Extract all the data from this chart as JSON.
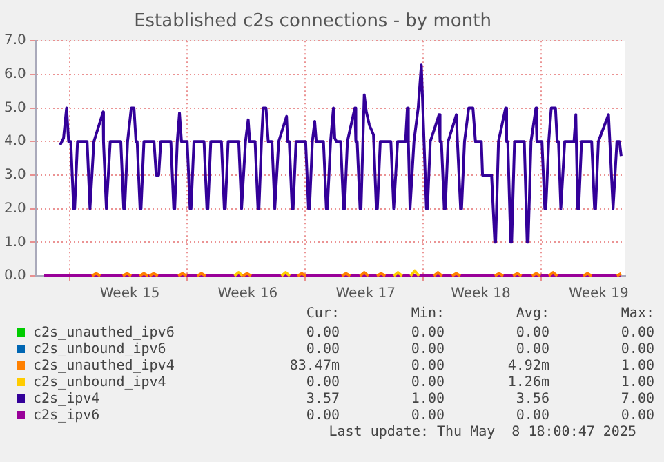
{
  "chart_data": {
    "type": "line",
    "title": "Established c2s connections - by month",
    "legend": "bottom",
    "marker": "none",
    "grid": true,
    "xlim": [
      "2025-04-04",
      "2025-05-09"
    ],
    "xticks": [
      {
        "value": "2025-04-06",
        "label": null
      },
      {
        "value": "2025-04-09T14:00",
        "label": "Week 15"
      },
      {
        "value": "2025-04-13",
        "label": null
      },
      {
        "value": "2025-04-16T14:00",
        "label": "Week 16"
      },
      {
        "value": "2025-04-20",
        "label": null
      },
      {
        "value": "2025-04-23T14:00",
        "label": "Week 17"
      },
      {
        "value": "2025-04-27",
        "label": null
      },
      {
        "value": "2025-04-30T10:00",
        "label": "Week 18"
      },
      {
        "value": "2025-05-04",
        "label": null
      },
      {
        "value": "2025-05-07T10:00",
        "label": "Week 19"
      }
    ],
    "ylim": [
      0,
      7
    ],
    "yticks": [
      {
        "value": 0,
        "label": "0.0"
      },
      {
        "value": 1,
        "label": "1.0"
      },
      {
        "value": 2,
        "label": "2.0"
      },
      {
        "value": 3,
        "label": "3.0"
      },
      {
        "value": 4,
        "label": "4.0"
      },
      {
        "value": 5,
        "label": "5.0"
      },
      {
        "value": 6,
        "label": "6.0"
      },
      {
        "value": 7,
        "label": "7.0"
      }
    ],
    "series": [
      {
        "name": "c2s_unauthed_ipv6",
        "color": "#00cc00"
      },
      {
        "name": "c2s_unbound_ipv6",
        "color": "#0066b3"
      },
      {
        "name": "c2s_unauthed_ipv4",
        "color": "#ff8000",
        "x": [
          "2025-04-07T08:00",
          "2025-04-07T14:00",
          "2025-04-07T20:00",
          "2025-04-07T21:00",
          "2025-04-09T04:00",
          "2025-04-09T10:00",
          "2025-04-09T16:00",
          "2025-04-09T17:00",
          "2025-04-10T04:00",
          "2025-04-10T10:00",
          "2025-04-10T16:00",
          "2025-04-10T17:00",
          "2025-04-10T18:00",
          "2025-04-11T00:00",
          "2025-04-11T06:00",
          "2025-04-11T07:00",
          "2025-04-12T11:00",
          "2025-04-12T17:00",
          "2025-04-12T23:00",
          "2025-04-13T00:00",
          "2025-04-13T14:00",
          "2025-04-13T20:00",
          "2025-04-14T02:00",
          "2025-04-14T03:00",
          "2025-04-16T07:00",
          "2025-04-16T13:00",
          "2025-04-16T19:00",
          "2025-04-16T20:00",
          "2025-04-19T13:00",
          "2025-04-19T19:00",
          "2025-04-20T01:00",
          "2025-04-20T02:00",
          "2025-04-22T04:00",
          "2025-04-22T10:00",
          "2025-04-22T16:00",
          "2025-04-22T17:00",
          "2025-04-23T06:00",
          "2025-04-23T12:00",
          "2025-04-23T18:00",
          "2025-04-23T19:00",
          "2025-04-24T06:00",
          "2025-04-24T12:00",
          "2025-04-24T18:00",
          "2025-04-24T19:00",
          "2025-04-27T15:00",
          "2025-04-27T21:00",
          "2025-04-28T03:00",
          "2025-04-28T04:00",
          "2025-04-28T17:00",
          "2025-04-28T23:00",
          "2025-04-29T05:00",
          "2025-04-29T06:00",
          "2025-05-01T06:00",
          "2025-05-01T12:00",
          "2025-05-01T18:00",
          "2025-05-01T19:00",
          "2025-05-02T08:00",
          "2025-05-02T14:00",
          "2025-05-02T20:00",
          "2025-05-02T21:00",
          "2025-05-03T11:00",
          "2025-05-03T17:00",
          "2025-05-03T23:00",
          "2025-05-04T00:00",
          "2025-05-04T11:00",
          "2025-05-04T17:00",
          "2025-05-04T23:00",
          "2025-05-05T00:00",
          "2025-05-06T12:00",
          "2025-05-06T18:00",
          "2025-05-07T00:00",
          "2025-05-07T01:00",
          "2025-05-08T12:00",
          "2025-05-08T18:00"
        ],
        "values": [
          0,
          0.07,
          0,
          null,
          0,
          0.07,
          0,
          null,
          0,
          0.07,
          0,
          null,
          0,
          0.07,
          0,
          null,
          0,
          0.07,
          0,
          null,
          0,
          0.07,
          0,
          null,
          0,
          0.07,
          0,
          null,
          0,
          0.07,
          0,
          null,
          0,
          0.07,
          0,
          null,
          0,
          0.1,
          0,
          null,
          0,
          0.07,
          0,
          null,
          0,
          0.1,
          0,
          null,
          0,
          0.07,
          0,
          null,
          0,
          0.07,
          0,
          null,
          0,
          0.07,
          0,
          null,
          0,
          0.07,
          0,
          null,
          0,
          0.1,
          0,
          null,
          0,
          0.07,
          0,
          null,
          0,
          0.07
        ]
      },
      {
        "name": "c2s_unbound_ipv4",
        "color": "#ffcc00",
        "x": [
          "2025-04-15T19:00",
          "2025-04-16T01:00",
          "2025-04-16T07:00",
          "2025-04-16T08:00",
          "2025-04-18T14:00",
          "2025-04-18T20:00",
          "2025-04-19T02:00",
          "2025-04-19T03:00",
          "2025-04-25T06:00",
          "2025-04-25T12:00",
          "2025-04-25T18:00",
          "2025-04-25T19:00",
          "2025-04-26T06:00",
          "2025-04-26T12:00",
          "2025-04-26T18:00"
        ],
        "values": [
          0,
          0.1,
          0,
          null,
          0,
          0.1,
          0,
          null,
          0,
          0.1,
          0,
          null,
          0,
          0.15,
          0
        ]
      },
      {
        "name": "c2s_ipv4",
        "color": "#330099",
        "x": [
          "2025-04-05T10:50",
          "2025-04-05T15:35",
          "2025-04-05T19:55",
          "2025-04-05T22:50",
          "2025-04-06T01:55",
          "2025-04-06T06:00",
          "2025-04-06T07:25",
          "2025-04-06T11:30",
          "2025-04-06T19:10",
          "2025-04-07T01:10",
          "2025-04-07T05:15",
          "2025-04-07T06:40",
          "2025-04-07T10:50",
          "2025-04-08T00:00",
          "2025-04-08T00:30",
          "2025-04-08T04:35",
          "2025-04-08T06:00",
          "2025-04-08T10:05",
          "2025-04-09T01:10",
          "2025-04-09T05:15",
          "2025-04-09T06:40",
          "2025-04-09T10:50",
          "2025-04-09T16:05",
          "2025-04-09T19:55",
          "2025-04-09T22:50",
          "2025-04-10T00:30",
          "2025-04-10T04:35",
          "2025-04-10T06:00",
          "2025-04-10T10:05",
          "2025-04-11T00:30",
          "2025-04-11T03:35",
          "2025-04-11T07:10",
          "2025-04-11T10:05",
          "2025-04-12T00:30",
          "2025-04-12T04:35",
          "2025-04-12T06:00",
          "2025-04-12T09:35",
          "2025-04-12T12:45",
          "2025-04-12T15:35",
          "2025-04-12T23:45",
          "2025-04-13T03:50",
          "2025-04-13T05:15",
          "2025-04-13T09:20",
          "2025-04-13T23:45",
          "2025-04-14T03:50",
          "2025-04-14T05:15",
          "2025-04-14T09:20",
          "2025-04-15T00:30",
          "2025-04-15T04:35",
          "2025-04-15T06:00",
          "2025-04-15T10:05",
          "2025-04-16T01:10",
          "2025-04-16T05:15",
          "2025-04-16T06:40",
          "2025-04-16T10:50",
          "2025-04-16T14:40",
          "2025-04-16T16:50",
          "2025-04-17T00:30",
          "2025-04-17T04:35",
          "2025-04-17T06:00",
          "2025-04-17T09:35",
          "2025-04-17T12:00",
          "2025-04-17T16:05",
          "2025-04-17T19:10",
          "2025-04-18T00:30",
          "2025-04-18T04:35",
          "2025-04-18T06:00",
          "2025-04-18T10:05",
          "2025-04-18T21:20",
          "2025-04-18T22:50",
          "2025-04-19T01:10",
          "2025-04-19T05:15",
          "2025-04-19T06:40",
          "2025-04-19T10:50",
          "2025-04-20T00:30",
          "2025-04-20T04:35",
          "2025-04-20T06:00",
          "2025-04-20T10:05",
          "2025-04-20T13:25",
          "2025-04-20T15:35",
          "2025-04-21T01:55",
          "2025-04-21T06:00",
          "2025-04-21T07:25",
          "2025-04-21T12:00",
          "2025-04-21T16:05",
          "2025-04-21T18:00",
          "2025-04-21T20:25",
          "2025-04-22T02:25",
          "2025-04-22T06:30",
          "2025-04-22T07:55",
          "2025-04-22T12:00",
          "2025-04-22T22:35",
          "2025-04-23T00:00",
          "2025-04-23T01:55",
          "2025-04-23T06:00",
          "2025-04-23T07:25",
          "2025-04-23T10:05",
          "2025-04-23T12:00",
          "2025-04-23T14:50",
          "2025-04-23T19:10",
          "2025-04-24T01:10",
          "2025-04-24T05:15",
          "2025-04-24T06:40",
          "2025-04-24T10:50",
          "2025-04-25T01:55",
          "2025-04-25T06:00",
          "2025-04-25T07:25",
          "2025-04-25T11:30",
          "2025-04-25T22:50",
          "2025-04-26T01:25",
          "2025-04-26T02:50",
          "2025-04-26T05:15",
          "2025-04-26T06:40",
          "2025-04-26T10:50",
          "2025-04-26T16:50",
          "2025-04-26T21:20",
          "2025-04-26T23:30",
          "2025-04-27T04:35",
          "2025-04-27T06:00",
          "2025-04-27T10:05",
          "2025-04-27T22:35",
          "2025-04-28T00:00",
          "2025-04-28T01:55",
          "2025-04-28T06:00",
          "2025-04-28T07:25",
          "2025-04-28T11:30",
          "2025-04-28T23:15",
          "2025-04-29T00:45",
          "2025-04-29T05:15",
          "2025-04-29T06:40",
          "2025-04-29T10:50",
          "2025-04-29T16:50",
          "2025-04-29T22:50",
          "2025-04-30T02:25",
          "2025-04-30T10:50",
          "2025-04-30T12:30",
          "2025-05-01T01:25",
          "2025-05-01T06:00",
          "2025-05-01T07:10",
          "2025-05-01T11:15",
          "2025-05-01T21:20",
          "2025-05-01T22:50",
          "2025-05-02T00:30",
          "2025-05-02T04:35",
          "2025-05-02T06:00",
          "2025-05-02T10:05",
          "2025-05-03T00:00",
          "2025-05-03T04:05",
          "2025-05-03T05:30",
          "2025-05-03T09:35",
          "2025-05-03T16:35",
          "2025-05-03T18:00",
          "2025-05-04T01:10",
          "2025-05-04T05:15",
          "2025-05-04T06:40",
          "2025-05-04T10:50",
          "2025-05-04T14:25",
          "2025-05-04T20:25",
          "2025-05-04T22:50",
          "2025-05-05T00:45",
          "2025-05-05T04:05",
          "2025-05-05T05:30",
          "2025-05-05T09:35",
          "2025-05-05T22:50",
          "2025-05-06T01:25",
          "2025-05-06T04:05",
          "2025-05-06T05:30",
          "2025-05-06T09:35",
          "2025-05-07T00:00",
          "2025-05-07T04:05",
          "2025-05-07T05:30",
          "2025-05-07T09:35",
          "2025-05-08T00:00",
          "2025-05-08T01:55",
          "2025-05-08T06:30",
          "2025-05-08T07:55",
          "2025-05-08T12:00",
          "2025-05-08T15:35",
          "2025-05-08T18:00"
        ],
        "values": [
          3.9,
          4.1,
          5,
          4,
          4,
          2,
          2,
          4,
          4,
          4,
          2,
          2,
          4,
          4.88,
          4,
          2,
          2,
          4,
          4,
          2,
          2,
          4,
          5,
          5,
          4,
          4,
          2,
          2,
          4,
          4,
          3,
          3,
          4,
          4,
          2,
          2,
          4,
          4.85,
          4,
          4,
          2,
          2,
          4,
          4,
          2,
          2,
          4,
          4,
          2,
          2,
          4,
          4,
          2,
          2,
          4,
          4.65,
          4,
          4,
          2,
          2,
          4,
          5,
          5,
          4,
          4,
          2,
          2,
          4,
          4.75,
          4,
          4,
          2,
          2,
          4,
          4,
          2,
          2,
          4,
          4.6,
          4,
          4,
          2,
          2,
          4,
          5,
          4.1,
          4,
          4,
          2,
          2,
          4,
          5,
          4,
          4,
          2,
          2,
          4,
          5.39,
          4.9,
          4.5,
          4.2,
          2,
          2,
          4,
          4,
          2,
          2,
          4,
          4,
          5,
          4,
          2,
          2,
          4,
          5,
          6.28,
          5,
          2,
          2,
          4,
          4.8,
          4,
          4,
          2,
          2,
          4,
          4.8,
          4,
          2,
          2,
          4,
          5,
          5,
          4,
          4,
          3,
          3,
          1,
          1,
          4,
          5,
          4,
          4,
          1,
          1,
          4,
          4,
          1,
          1,
          4,
          5,
          4,
          4,
          2,
          2,
          4,
          5,
          5,
          4,
          4,
          2,
          2,
          4,
          4,
          4.8,
          2,
          2,
          4,
          4,
          2,
          2,
          4,
          4.8,
          4,
          2,
          2,
          4,
          4,
          3.57
        ]
      },
      {
        "name": "c2s_ipv6",
        "color": "#990099",
        "x": [
          "2025-04-04T12:00",
          "2025-05-08T18:00"
        ],
        "values": [
          0,
          0
        ]
      }
    ],
    "annotations": [
      "Cur:",
      "Min:",
      "Avg:",
      "Max:",
      "0.00",
      "0.00",
      "0.00",
      "0.00",
      "0.00",
      "0.00",
      "0.00",
      "0.00",
      "83.47m",
      "0.00",
      "4.92m",
      "1.00",
      "0.00",
      "0.00",
      "1.26m",
      "1.00",
      "3.57",
      "1.00",
      "3.56",
      "7.00",
      "0.00",
      "0.00",
      "0.00",
      "0.00",
      "Last update: Thu May  8 18:00:47 2025"
    ]
  }
}
